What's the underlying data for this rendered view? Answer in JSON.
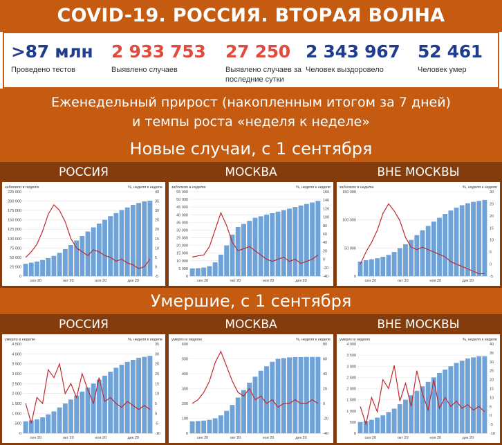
{
  "title": "COVID-19. РОССИЯ. ВТОРАЯ ВОЛНА",
  "stats": [
    {
      "value": ">87 млн",
      "label": "Проведено тестов",
      "color": "#1f3d8c"
    },
    {
      "value": "2 933 753",
      "label": "Выявлено случаев",
      "color": "#e04a3f"
    },
    {
      "value": "27 250",
      "label": "Выявлено случаев за последние сутки",
      "color": "#e04a3f"
    },
    {
      "value": "2 343 967",
      "label": "Человек выздоровело",
      "color": "#1f3d8c"
    },
    {
      "value": "52 461",
      "label": "Человек умер",
      "color": "#1f3d8c"
    }
  ],
  "subtitle_line1": "Еженедельный прирост (накопленным итогом за 7 дней)",
  "subtitle_line2": "и темпы роста «неделя к неделе»",
  "section_cases": "Новые случаи, с 1 сентября",
  "section_deaths": "Умершие, с 1 сентября",
  "panel_titles": [
    "РОССИЯ",
    "МОСКВА",
    "ВНЕ МОСКВЫ"
  ],
  "colors": {
    "bar": "#6fa3d8",
    "line": "#c0282d",
    "band": "#c55a11",
    "band_dark": "#843c0c"
  },
  "chart_data": [
    {
      "type": "bar+line",
      "id": "cases-russia",
      "ylabel_left": "заболело в неделю",
      "ylabel_right": "%, неделя к неделе",
      "x_ticks": [
        "сен 20",
        "окт 20",
        "ноя 20",
        "дек 20"
      ],
      "ylim_left": [
        0,
        225000
      ],
      "yticks_left": [
        "0",
        "25 000",
        "50 000",
        "75 000",
        "100 000",
        "125 000",
        "150 000",
        "175 000",
        "200 000",
        "225 000"
      ],
      "ylim_right": [
        -5,
        40
      ],
      "yticks_right": [
        "-5",
        "0",
        "5",
        "10",
        "15",
        "20",
        "25",
        "30",
        "35",
        "40"
      ],
      "bars": [
        33000,
        36000,
        39000,
        43000,
        48000,
        54000,
        62000,
        72000,
        83000,
        95000,
        107000,
        119000,
        130000,
        140000,
        150000,
        160000,
        168000,
        176000,
        183000,
        190000,
        195000,
        199000,
        201000
      ],
      "line": [
        5,
        8,
        12,
        19,
        28,
        33,
        30,
        24,
        15,
        10,
        8,
        6,
        9,
        8,
        6,
        5,
        3,
        4,
        2,
        1,
        -1,
        0,
        4
      ]
    },
    {
      "type": "bar+line",
      "id": "cases-moscow",
      "ylabel_left": "заболело в неделю",
      "ylabel_right": "%, неделя к неделе",
      "x_ticks": [
        "сен 20",
        "окт 20",
        "ноя 20",
        "дек 20"
      ],
      "ylim_left": [
        0,
        55000
      ],
      "yticks_left": [
        "0",
        "5 000",
        "10 000",
        "15 000",
        "20 000",
        "25 000",
        "30 000",
        "35 000",
        "40 000",
        "45 000",
        "50 000",
        "55 000"
      ],
      "ylim_right": [
        -40,
        160
      ],
      "yticks_right": [
        "-40",
        "-20",
        "0",
        "20",
        "40",
        "60",
        "80",
        "100",
        "120",
        "140",
        "160"
      ],
      "bars": [
        5000,
        5200,
        5600,
        6500,
        9000,
        14000,
        20000,
        27000,
        32000,
        34000,
        36000,
        38000,
        39000,
        40000,
        41000,
        42000,
        43000,
        44000,
        45000,
        46000,
        47000,
        48000,
        49000
      ],
      "line": [
        5,
        8,
        10,
        30,
        70,
        110,
        80,
        40,
        20,
        25,
        30,
        20,
        10,
        0,
        -5,
        0,
        5,
        -5,
        0,
        -10,
        -5,
        0,
        10
      ]
    },
    {
      "type": "bar+line",
      "id": "cases-outside",
      "ylabel_left": "заболело в неделю",
      "ylabel_right": "%, неделя к неделе",
      "x_ticks": [
        "сен 20",
        "окт 20",
        "ноя 20",
        "дек 20"
      ],
      "ylim_left": [
        0,
        175000
      ],
      "yticks_left": [
        "0",
        "50 000",
        "100 000",
        "150 000"
      ],
      "ylim_right": [
        -5,
        30
      ],
      "yticks_right": [
        "-5",
        "0",
        "5",
        "10",
        "15",
        "20",
        "25",
        "30"
      ],
      "bars": [
        30000,
        33000,
        35000,
        37000,
        40000,
        44000,
        50000,
        58000,
        66000,
        75000,
        85000,
        95000,
        104000,
        113000,
        121000,
        129000,
        136000,
        142000,
        147000,
        151000,
        154000,
        156000,
        158000
      ],
      "line": [
        0,
        5,
        9,
        14,
        21,
        25,
        22,
        18,
        11,
        7,
        6,
        7,
        6,
        5,
        4,
        3,
        1,
        0,
        -1,
        -2,
        -3,
        -4,
        -4
      ]
    },
    {
      "type": "bar+line",
      "id": "deaths-russia",
      "ylabel_left": "умерло в неделю",
      "ylabel_right": "%, неделя к неделе",
      "x_ticks": [
        "сен 20",
        "окт 20",
        "ноя 20",
        "дек 20"
      ],
      "ylim_left": [
        0,
        4500
      ],
      "yticks_left": [
        "0",
        "500",
        "1 000",
        "1 500",
        "2 000",
        "2 500",
        "3 000",
        "3 500",
        "4 000",
        "4 500"
      ],
      "ylim_right": [
        -10,
        35
      ],
      "yticks_right": [
        "-10",
        "-5",
        "0",
        "5",
        "10",
        "15",
        "20",
        "25",
        "30",
        "35"
      ],
      "bars": [
        600,
        650,
        700,
        800,
        950,
        1100,
        1300,
        1500,
        1700,
        1900,
        2100,
        2300,
        2500,
        2700,
        2900,
        3100,
        3300,
        3450,
        3600,
        3700,
        3800,
        3850,
        3900
      ],
      "line": [
        5,
        -5,
        8,
        5,
        22,
        18,
        25,
        10,
        15,
        8,
        20,
        12,
        5,
        18,
        6,
        8,
        5,
        3,
        6,
        4,
        2,
        4,
        2
      ]
    },
    {
      "type": "bar+line",
      "id": "deaths-moscow",
      "ylabel_left": "умерло в неделю",
      "ylabel_right": "%, неделя к неделе",
      "x_ticks": [
        "сен 20",
        "окт 20",
        "ноя 20",
        "дек 20"
      ],
      "ylim_left": [
        0,
        600
      ],
      "yticks_left": [
        "0",
        "100",
        "200",
        "300",
        "400",
        "500",
        "600"
      ],
      "ylim_right": [
        -40,
        80
      ],
      "yticks_right": [
        "-40",
        "-20",
        "0",
        "20",
        "40",
        "60",
        "80"
      ],
      "bars": [
        80,
        82,
        85,
        90,
        100,
        120,
        150,
        190,
        240,
        290,
        340,
        380,
        420,
        450,
        480,
        500,
        505,
        510,
        512,
        512,
        513,
        513,
        513
      ],
      "line": [
        0,
        5,
        15,
        30,
        55,
        70,
        50,
        30,
        15,
        10,
        20,
        5,
        10,
        0,
        5,
        -5,
        0,
        0,
        5,
        0,
        0,
        5,
        0
      ]
    },
    {
      "type": "bar+line",
      "id": "deaths-outside",
      "ylabel_left": "умерло в неделю",
      "ylabel_right": "%, неделя к неделе",
      "x_ticks": [
        "сен 20",
        "окт 20",
        "ноя 20",
        "дек 20"
      ],
      "ylim_left": [
        0,
        4000
      ],
      "yticks_left": [
        "0",
        "500",
        "1 000",
        "1 500",
        "2 000",
        "2 500",
        "3 000",
        "3 500",
        "4 000"
      ],
      "ylim_right": [
        -10,
        40
      ],
      "yticks_right": [
        "-10",
        "-5",
        "0",
        "5",
        "10",
        "15",
        "20",
        "25",
        "30",
        "35",
        "40"
      ],
      "bars": [
        500,
        550,
        600,
        700,
        800,
        950,
        1100,
        1300,
        1500,
        1700,
        1900,
        2100,
        2300,
        2500,
        2700,
        2850,
        3000,
        3150,
        3250,
        3350,
        3400,
        3450,
        3450
      ],
      "line": [
        5,
        -5,
        10,
        2,
        20,
        15,
        28,
        8,
        18,
        5,
        25,
        12,
        3,
        20,
        4,
        10,
        5,
        8,
        4,
        6,
        3,
        5,
        2
      ]
    }
  ]
}
